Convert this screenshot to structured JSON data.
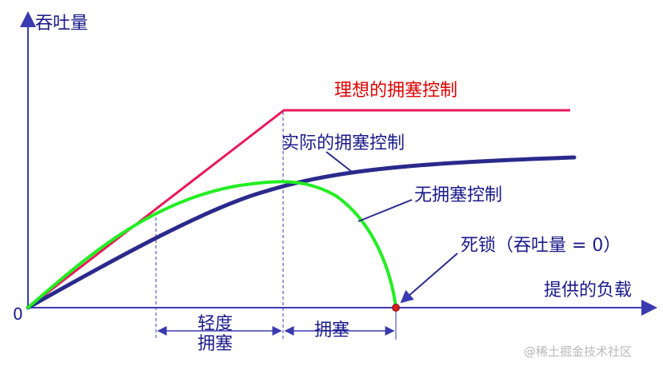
{
  "chart_data": {
    "type": "line",
    "title": "",
    "ylabel": "吞吐量",
    "xlabel": "提供的负载",
    "origin_label": "0",
    "grid": false,
    "series": [
      {
        "name": "理想的拥塞控制",
        "color": "#e8195a"
      },
      {
        "name": "实际的拥塞控制",
        "color": "#2a2a8c"
      },
      {
        "name": "无拥塞控制",
        "color": "#22ee22"
      }
    ],
    "annotations": {
      "deadlock": "死锁（吞吐量 = 0）",
      "light_congestion": [
        "轻度",
        "拥塞"
      ],
      "congestion": "拥塞"
    }
  },
  "watermark": "@稀土掘金技术社区",
  "colors": {
    "axis": "#3a3ab0",
    "ideal_label": "#e00000",
    "label_text": "#1a1a8a"
  }
}
